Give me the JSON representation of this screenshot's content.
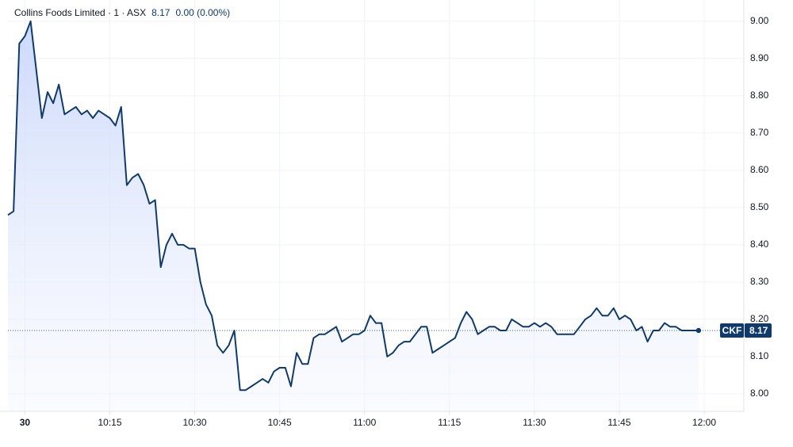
{
  "chart_data": {
    "type": "area",
    "title": "Collins Foods Limited · 1 · ASX",
    "price": "8.17",
    "change": "0.00 (0.00%)",
    "color": "#0f3a6b",
    "grid": true,
    "price_label": {
      "symbol": "CKF",
      "value": 8.17,
      "label": "8.17"
    },
    "xlim": [
      -3,
      127
    ],
    "ylim": [
      7.953,
      9.057
    ],
    "xticks": [
      {
        "value": 0,
        "label": "30"
      },
      {
        "value": 15,
        "label": "10:15"
      },
      {
        "value": 30,
        "label": "10:30"
      },
      {
        "value": 45,
        "label": "10:45"
      },
      {
        "value": 60,
        "label": "11:00"
      },
      {
        "value": 75,
        "label": "11:15"
      },
      {
        "value": 90,
        "label": "11:30"
      },
      {
        "value": 105,
        "label": "11:45"
      },
      {
        "value": 120,
        "label": "12:00"
      }
    ],
    "yticks": [
      {
        "value": 8.0,
        "label": "8.00"
      },
      {
        "value": 8.1,
        "label": "8.10"
      },
      {
        "value": 8.2,
        "label": "8.20"
      },
      {
        "value": 8.3,
        "label": "8.30"
      },
      {
        "value": 8.4,
        "label": "8.40"
      },
      {
        "value": 8.5,
        "label": "8.50"
      },
      {
        "value": 8.6,
        "label": "8.60"
      },
      {
        "value": 8.7,
        "label": "8.70"
      },
      {
        "value": 8.8,
        "label": "8.80"
      },
      {
        "value": 8.9,
        "label": "8.90"
      },
      {
        "value": 9.0,
        "label": "9.00"
      }
    ],
    "x": [
      -3,
      -2,
      -1,
      0,
      1,
      2,
      3,
      4,
      5,
      6,
      7,
      8,
      9,
      10,
      11,
      12,
      13,
      14,
      15,
      16,
      17,
      18,
      19,
      20,
      21,
      22,
      23,
      24,
      25,
      26,
      27,
      28,
      29,
      30,
      31,
      32,
      33,
      34,
      35,
      36,
      37,
      38,
      39,
      40,
      41,
      42,
      43,
      44,
      45,
      46,
      47,
      48,
      49,
      50,
      51,
      52,
      53,
      54,
      55,
      56,
      57,
      58,
      59,
      60,
      61,
      62,
      63,
      64,
      65,
      66,
      67,
      68,
      69,
      70,
      71,
      72,
      73,
      74,
      75,
      76,
      77,
      78,
      79,
      80,
      81,
      82,
      83,
      84,
      85,
      86,
      87,
      88,
      89,
      90,
      91,
      92,
      93,
      94,
      95,
      96,
      97,
      98,
      99,
      100,
      101,
      102,
      103,
      104,
      105,
      106,
      107,
      108,
      109,
      110,
      111,
      112,
      113,
      114,
      115,
      116,
      117,
      118,
      119
    ],
    "values": [
      8.48,
      8.49,
      8.94,
      8.96,
      9.0,
      8.87,
      8.74,
      8.81,
      8.78,
      8.83,
      8.75,
      8.76,
      8.77,
      8.75,
      8.76,
      8.74,
      8.76,
      8.75,
      8.74,
      8.72,
      8.77,
      8.56,
      8.58,
      8.59,
      8.56,
      8.51,
      8.52,
      8.34,
      8.4,
      8.43,
      8.4,
      8.4,
      8.39,
      8.39,
      8.3,
      8.24,
      8.21,
      8.13,
      8.11,
      8.13,
      8.17,
      8.01,
      8.01,
      8.02,
      8.03,
      8.04,
      8.03,
      8.06,
      8.07,
      8.07,
      8.02,
      8.11,
      8.08,
      8.08,
      8.15,
      8.16,
      8.16,
      8.17,
      8.18,
      8.14,
      8.15,
      8.16,
      8.16,
      8.17,
      8.21,
      8.19,
      8.19,
      8.1,
      8.11,
      8.13,
      8.14,
      8.14,
      8.16,
      8.18,
      8.18,
      8.11,
      8.12,
      8.13,
      8.14,
      8.15,
      8.19,
      8.22,
      8.2,
      8.16,
      8.17,
      8.18,
      8.18,
      8.17,
      8.17,
      8.2,
      8.19,
      8.18,
      8.18,
      8.19,
      8.18,
      8.19,
      8.18,
      8.16,
      8.16,
      8.16,
      8.16,
      8.18,
      8.2,
      8.21,
      8.23,
      8.21,
      8.21,
      8.23,
      8.2,
      8.21,
      8.2,
      8.17,
      8.18,
      8.14,
      8.17,
      8.17,
      8.19,
      8.18,
      8.18,
      8.17,
      8.17,
      8.17,
      8.17
    ]
  }
}
